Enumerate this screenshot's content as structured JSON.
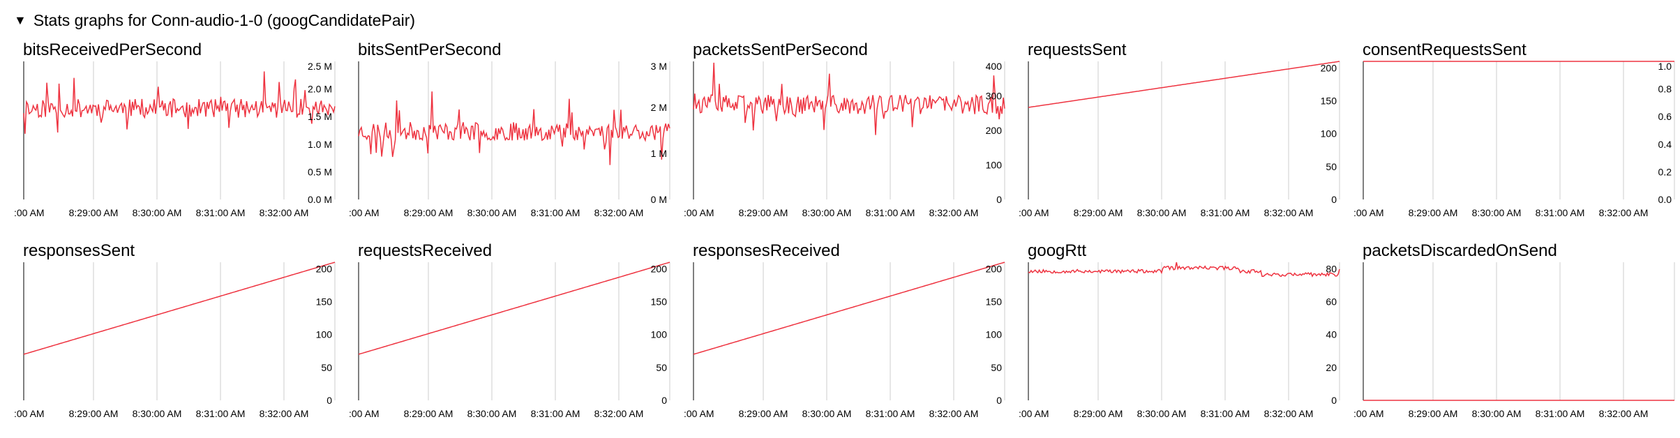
{
  "header": {
    "title": "Stats graphs for Conn-audio-1-0 (googCandidatePair)"
  },
  "colors": {
    "line": "#ee3340",
    "grid": "#cccccc",
    "axis": "#555555"
  },
  "chart_data": [
    {
      "id": "bitsReceivedPerSecond",
      "type": "line",
      "title": "bitsReceivedPerSecond",
      "ylim": [
        0,
        2500000
      ],
      "yticks": [
        {
          "v": 0,
          "label": "0.0 M"
        },
        {
          "v": 500000,
          "label": "0.5 M"
        },
        {
          "v": 1000000,
          "label": "1.0 M"
        },
        {
          "v": 1500000,
          "label": "1.5 M"
        },
        {
          "v": 2000000,
          "label": "2.0 M"
        },
        {
          "v": 2500000,
          "label": "2.5 M"
        }
      ],
      "xticks": [
        ":00 AM",
        "8:29:00 AM",
        "8:30:00 AM",
        "8:31:00 AM",
        "8:32:00 AM"
      ],
      "series": [
        {
          "gen": "noise",
          "base": 1650000,
          "amp": 170000,
          "spike": 700000,
          "seed": 11
        }
      ]
    },
    {
      "id": "bitsSentPerSecond",
      "type": "line",
      "title": "bitsSentPerSecond",
      "ylim": [
        0,
        3000000
      ],
      "yticks": [
        {
          "v": 0,
          "label": "0 M"
        },
        {
          "v": 1000000,
          "label": "1 M"
        },
        {
          "v": 2000000,
          "label": "2 M"
        },
        {
          "v": 3000000,
          "label": "3 M"
        }
      ],
      "xticks": [
        ":00 AM",
        "8:29:00 AM",
        "8:30:00 AM",
        "8:31:00 AM",
        "8:32:00 AM"
      ],
      "series": [
        {
          "gen": "noise",
          "base": 1480000,
          "amp": 200000,
          "spike": 850000,
          "seed": 23
        }
      ]
    },
    {
      "id": "packetsSentPerSecond",
      "type": "line",
      "title": "packetsSentPerSecond",
      "ylim": [
        0,
        400
      ],
      "yticks": [
        {
          "v": 0,
          "label": "0"
        },
        {
          "v": 100,
          "label": "100"
        },
        {
          "v": 200,
          "label": "200"
        },
        {
          "v": 300,
          "label": "300"
        },
        {
          "v": 400,
          "label": "400"
        }
      ],
      "xticks": [
        ":00 AM",
        "8:29:00 AM",
        "8:30:00 AM",
        "8:31:00 AM",
        "8:32:00 AM"
      ],
      "series": [
        {
          "gen": "noise",
          "base": 275,
          "amp": 28,
          "spike": 120,
          "seed": 37
        }
      ]
    },
    {
      "id": "requestsSent",
      "type": "line",
      "title": "requestsSent",
      "ylim": [
        0,
        210
      ],
      "yticks": [
        {
          "v": 0,
          "label": "0"
        },
        {
          "v": 50,
          "label": "50"
        },
        {
          "v": 100,
          "label": "100"
        },
        {
          "v": 150,
          "label": "150"
        },
        {
          "v": 200,
          "label": "200"
        }
      ],
      "xticks": [
        ":00 AM",
        "8:29:00 AM",
        "8:30:00 AM",
        "8:31:00 AM",
        "8:32:00 AM"
      ],
      "series": [
        {
          "gen": "linear",
          "start": 140,
          "end": 210
        }
      ]
    },
    {
      "id": "consentRequestsSent",
      "type": "line",
      "title": "consentRequestsSent",
      "ylim": [
        0,
        1.0
      ],
      "yticks": [
        {
          "v": 0,
          "label": "0.0"
        },
        {
          "v": 0.2,
          "label": "0.2"
        },
        {
          "v": 0.4,
          "label": "0.4"
        },
        {
          "v": 0.6,
          "label": "0.6"
        },
        {
          "v": 0.8,
          "label": "0.8"
        },
        {
          "v": 1.0,
          "label": "1.0"
        }
      ],
      "xticks": [
        ":00 AM",
        "8:29:00 AM",
        "8:30:00 AM",
        "8:31:00 AM",
        "8:32:00 AM"
      ],
      "series": [
        {
          "gen": "const",
          "value": 1.0
        }
      ]
    },
    {
      "id": "responsesSent",
      "type": "line",
      "title": "responsesSent",
      "ylim": [
        0,
        210
      ],
      "yticks": [
        {
          "v": 0,
          "label": "0"
        },
        {
          "v": 50,
          "label": "50"
        },
        {
          "v": 100,
          "label": "100"
        },
        {
          "v": 150,
          "label": "150"
        },
        {
          "v": 200,
          "label": "200"
        }
      ],
      "xticks": [
        ":00 AM",
        "8:29:00 AM",
        "8:30:00 AM",
        "8:31:00 AM",
        "8:32:00 AM"
      ],
      "series": [
        {
          "gen": "linear",
          "start": 70,
          "end": 210
        }
      ]
    },
    {
      "id": "requestsReceived",
      "type": "line",
      "title": "requestsReceived",
      "ylim": [
        0,
        210
      ],
      "yticks": [
        {
          "v": 0,
          "label": "0"
        },
        {
          "v": 50,
          "label": "50"
        },
        {
          "v": 100,
          "label": "100"
        },
        {
          "v": 150,
          "label": "150"
        },
        {
          "v": 200,
          "label": "200"
        }
      ],
      "xticks": [
        ":00 AM",
        "8:29:00 AM",
        "8:30:00 AM",
        "8:31:00 AM",
        "8:32:00 AM"
      ],
      "series": [
        {
          "gen": "linear",
          "start": 70,
          "end": 210
        }
      ]
    },
    {
      "id": "responsesReceived",
      "type": "line",
      "title": "responsesReceived",
      "ylim": [
        0,
        210
      ],
      "yticks": [
        {
          "v": 0,
          "label": "0"
        },
        {
          "v": 50,
          "label": "50"
        },
        {
          "v": 100,
          "label": "100"
        },
        {
          "v": 150,
          "label": "150"
        },
        {
          "v": 200,
          "label": "200"
        }
      ],
      "xticks": [
        ":00 AM",
        "8:29:00 AM",
        "8:30:00 AM",
        "8:31:00 AM",
        "8:32:00 AM"
      ],
      "series": [
        {
          "gen": "linear",
          "start": 70,
          "end": 210
        }
      ]
    },
    {
      "id": "googRtt",
      "type": "line",
      "title": "googRtt",
      "ylim": [
        0,
        84
      ],
      "yticks": [
        {
          "v": 0,
          "label": "0"
        },
        {
          "v": 20,
          "label": "20"
        },
        {
          "v": 40,
          "label": "40"
        },
        {
          "v": 60,
          "label": "60"
        },
        {
          "v": 80,
          "label": "80"
        }
      ],
      "xticks": [
        ":00 AM",
        "8:29:00 AM",
        "8:30:00 AM",
        "8:31:00 AM",
        "8:32:00 AM"
      ],
      "series": [
        {
          "gen": "rtt",
          "seed": 53
        }
      ]
    },
    {
      "id": "packetsDiscardedOnSend",
      "type": "line",
      "title": "packetsDiscardedOnSend",
      "ylim": [
        0,
        1
      ],
      "yticks": [],
      "xticks": [
        ":00 AM",
        "8:29:00 AM",
        "8:30:00 AM",
        "8:31:00 AM",
        "8:32:00 AM"
      ],
      "series": [
        {
          "gen": "const",
          "value": 0
        }
      ]
    }
  ]
}
